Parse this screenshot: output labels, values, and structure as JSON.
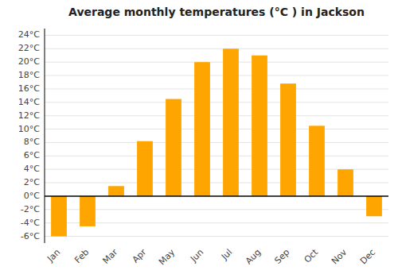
{
  "chart_data": {
    "type": "bar",
    "title": "Average monthly temperatures (°C ) in Jackson",
    "categories": [
      "Jan",
      "Feb",
      "Mar",
      "Apr",
      "May",
      "Jun",
      "Jul",
      "Aug",
      "Sep",
      "Oct",
      "Nov",
      "Dec"
    ],
    "values": [
      -6,
      -4.5,
      1.5,
      8.2,
      14.5,
      20,
      22,
      21,
      16.8,
      10.5,
      4,
      -3
    ],
    "color": "#FFA500",
    "ylim": [
      -7,
      25
    ],
    "yticks": [
      {
        "value": -6,
        "label": "-6°C"
      },
      {
        "value": -4,
        "label": "-4°C"
      },
      {
        "value": -2,
        "label": "-2°C"
      },
      {
        "value": 0,
        "label": "0°C"
      },
      {
        "value": 2,
        "label": "2°C"
      },
      {
        "value": 4,
        "label": "4°C"
      },
      {
        "value": 6,
        "label": "6°C"
      },
      {
        "value": 8,
        "label": "8°C"
      },
      {
        "value": 10,
        "label": "10°C"
      },
      {
        "value": 12,
        "label": "12°C"
      },
      {
        "value": 14,
        "label": "14°C"
      },
      {
        "value": 16,
        "label": "16°C"
      },
      {
        "value": 18,
        "label": "18°C"
      },
      {
        "value": 20,
        "label": "20°C"
      },
      {
        "value": 22,
        "label": "22°C"
      },
      {
        "value": 24,
        "label": "24°C"
      }
    ],
    "grid": true
  }
}
